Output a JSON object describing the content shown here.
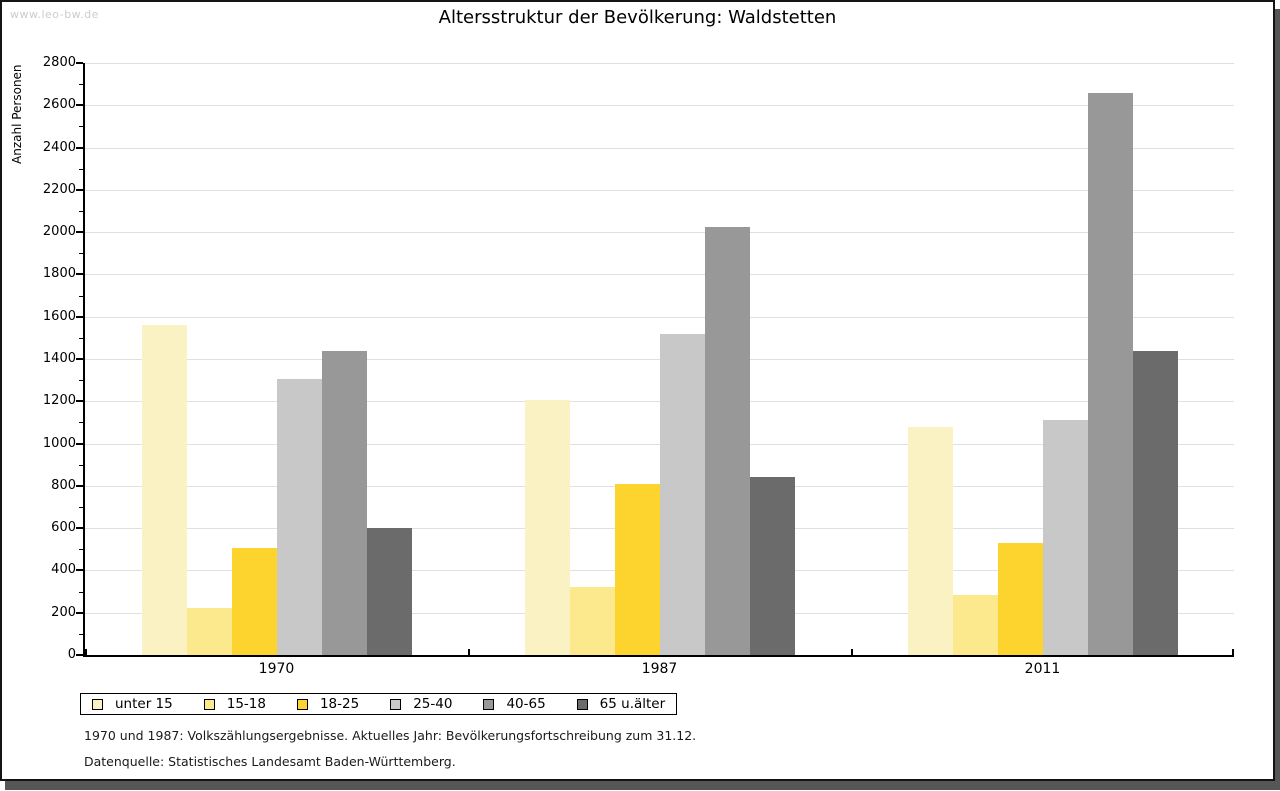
{
  "watermark": "www.leo-bw.de",
  "chart_data": {
    "type": "bar",
    "title": "Altersstruktur der Bevölkerung: Waldstetten",
    "ylabel": "Anzahl Personen",
    "xlabel": "",
    "categories": [
      "1970",
      "1987",
      "2011"
    ],
    "series": [
      {
        "name": "unter 15",
        "color": "#FBF2C4",
        "values": [
          1560,
          1205,
          1080
        ]
      },
      {
        "name": "15-18",
        "color": "#FCE88D",
        "values": [
          220,
          320,
          285
        ]
      },
      {
        "name": "18-25",
        "color": "#FDD42E",
        "values": [
          505,
          810,
          530
        ]
      },
      {
        "name": "25-40",
        "color": "#C8C8C8",
        "values": [
          1305,
          1520,
          1110
        ]
      },
      {
        "name": "40-65",
        "color": "#989898",
        "values": [
          1440,
          2025,
          2660
        ]
      },
      {
        "name": "65 u.älter",
        "color": "#6B6B6B",
        "values": [
          600,
          840,
          1440
        ]
      }
    ],
    "ylim": [
      0,
      2800
    ],
    "ytick_step": 200,
    "yminor_step": 100,
    "grid": true,
    "gridline_color": "#e0e0e0",
    "legend_position": "bottom-left"
  },
  "footnotes": [
    "1970 und 1987: Volkszählungsergebnisse. Aktuelles Jahr: Bevölkerungsfortschreibung zum 31.12.",
    "Datenquelle: Statistisches Landesamt Baden-Württemberg."
  ]
}
